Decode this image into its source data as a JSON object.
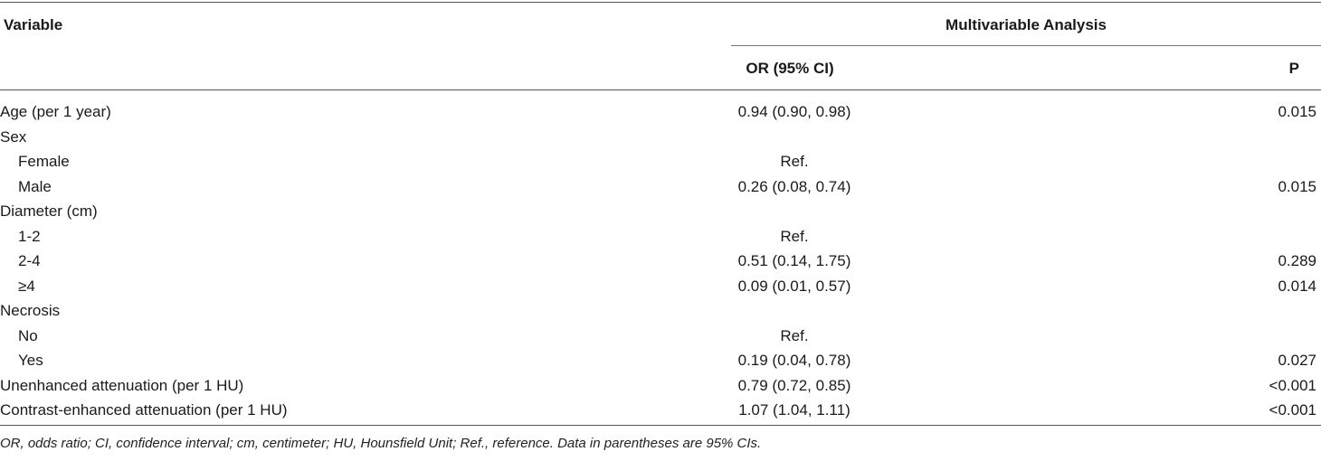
{
  "table": {
    "headers": {
      "variable": "Variable",
      "group": "Multivariable Analysis",
      "or_ci": "OR (95% CI)",
      "p": "P"
    },
    "rows": [
      {
        "variable": "Age (per 1 year)",
        "indent": false,
        "or_ci": "0.94 (0.90, 0.98)",
        "p": "0.015"
      },
      {
        "variable": "Sex",
        "indent": false,
        "or_ci": "",
        "p": ""
      },
      {
        "variable": "Female",
        "indent": true,
        "or_ci": "Ref.",
        "p": ""
      },
      {
        "variable": "Male",
        "indent": true,
        "or_ci": "0.26 (0.08, 0.74)",
        "p": "0.015"
      },
      {
        "variable": "Diameter (cm)",
        "indent": false,
        "or_ci": "",
        "p": ""
      },
      {
        "variable": "1-2",
        "indent": true,
        "or_ci": "Ref.",
        "p": ""
      },
      {
        "variable": "2-4",
        "indent": true,
        "or_ci": "0.51 (0.14, 1.75)",
        "p": "0.289"
      },
      {
        "variable": "≥4",
        "indent": true,
        "or_ci": "0.09 (0.01, 0.57)",
        "p": "0.014"
      },
      {
        "variable": "Necrosis",
        "indent": false,
        "or_ci": "",
        "p": ""
      },
      {
        "variable": "No",
        "indent": true,
        "or_ci": "Ref.",
        "p": ""
      },
      {
        "variable": "Yes",
        "indent": true,
        "or_ci": "0.19 (0.04, 0.78)",
        "p": "0.027"
      },
      {
        "variable": "Unenhanced attenuation (per 1 HU)",
        "indent": false,
        "or_ci": "0.79 (0.72, 0.85)",
        "p": "<0.001"
      },
      {
        "variable": "Contrast-enhanced attenuation (per 1 HU)",
        "indent": false,
        "or_ci": "1.07 (1.04, 1.11)",
        "p": "<0.001"
      }
    ]
  },
  "footnote": "OR, odds ratio; CI, confidence interval; cm, centimeter; HU, Hounsfield Unit; Ref., reference. Data in parentheses are 95% CIs."
}
